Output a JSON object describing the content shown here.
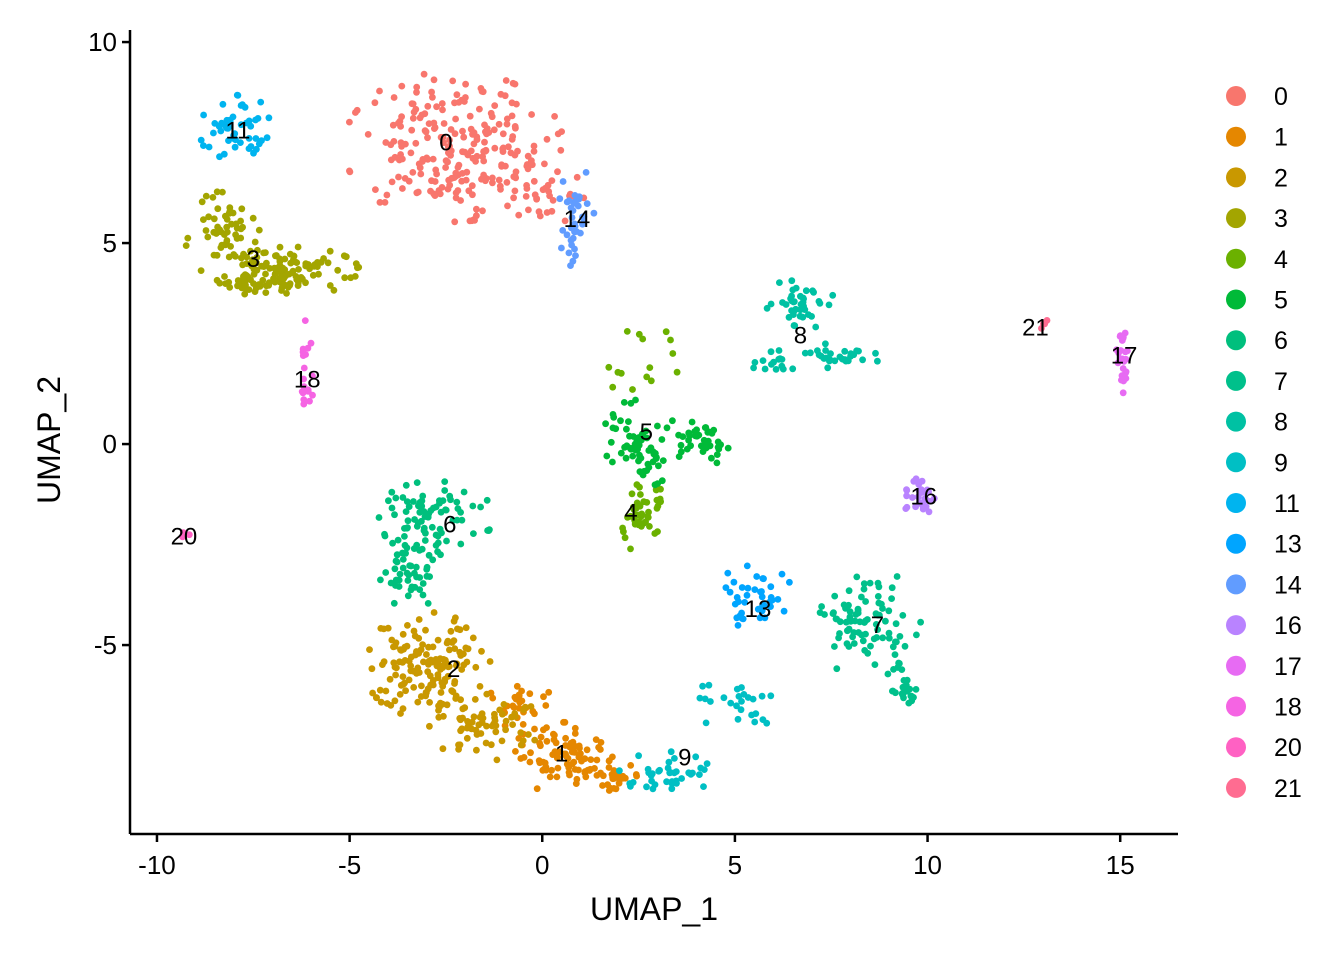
{
  "chart_data": {
    "type": "scatter",
    "title": "",
    "xlabel": "UMAP_1",
    "ylabel": "UMAP_2",
    "xlim": [
      -10.7,
      16.5
    ],
    "ylim": [
      -9.7,
      10.3
    ],
    "xticks": [
      -10,
      -5,
      0,
      5,
      10,
      15
    ],
    "yticks": [
      -5,
      0,
      5,
      10
    ],
    "xtick_labels": [
      "-10",
      "-5",
      "0",
      "5",
      "10",
      "15"
    ],
    "ytick_labels": [
      "-5",
      "0",
      "5",
      "10"
    ],
    "grid": false,
    "legend_position": "right",
    "clusters": [
      {
        "name": "0",
        "color": "#F8766D",
        "label_pos": [
          -2.5,
          7.5
        ],
        "regions": [
          {
            "cx": -2.3,
            "cy": 7.4,
            "rx": 2.6,
            "ry": 1.7,
            "n": 230
          },
          {
            "cx": 0.0,
            "cy": 6.2,
            "rx": 1.0,
            "ry": 0.7,
            "n": 30
          }
        ]
      },
      {
        "name": "1",
        "color": "#E58700",
        "label_pos": [
          0.5,
          -7.7
        ],
        "regions": [
          {
            "cx": 0.5,
            "cy": -7.8,
            "rx": 1.2,
            "ry": 0.8,
            "n": 90
          },
          {
            "cx": 1.9,
            "cy": -8.3,
            "rx": 0.5,
            "ry": 0.4,
            "n": 25
          },
          {
            "cx": -0.6,
            "cy": -6.5,
            "rx": 0.8,
            "ry": 0.6,
            "n": 30
          }
        ]
      },
      {
        "name": "2",
        "color": "#C99800",
        "label_pos": [
          -2.3,
          -5.6
        ],
        "regions": [
          {
            "cx": -3.0,
            "cy": -5.5,
            "rx": 1.5,
            "ry": 1.2,
            "n": 150
          },
          {
            "cx": -1.5,
            "cy": -7.0,
            "rx": 1.3,
            "ry": 0.8,
            "n": 60
          }
        ]
      },
      {
        "name": "3",
        "color": "#A3A500",
        "label_pos": [
          -7.5,
          4.6
        ],
        "regions": [
          {
            "cx": -8.2,
            "cy": 5.2,
            "rx": 1.0,
            "ry": 1.0,
            "n": 60
          },
          {
            "cx": -6.5,
            "cy": 4.3,
            "rx": 1.6,
            "ry": 0.55,
            "n": 100
          },
          {
            "cx": -7.8,
            "cy": 4.0,
            "rx": 0.8,
            "ry": 0.3,
            "n": 30
          }
        ]
      },
      {
        "name": "4",
        "color": "#6BB100",
        "label_pos": [
          2.3,
          -1.7
        ],
        "regions": [
          {
            "cx": 2.6,
            "cy": -1.7,
            "rx": 0.5,
            "ry": 1.0,
            "n": 45
          },
          {
            "cx": 2.3,
            "cy": 2.0,
            "rx": 1.4,
            "ry": 0.9,
            "n": 15
          }
        ]
      },
      {
        "name": "5",
        "color": "#00BA38",
        "label_pos": [
          2.7,
          0.3
        ],
        "regions": [
          {
            "cx": 2.5,
            "cy": 0.0,
            "rx": 1.0,
            "ry": 1.0,
            "n": 70
          },
          {
            "cx": 4.2,
            "cy": 0.1,
            "rx": 0.6,
            "ry": 0.6,
            "n": 40
          }
        ]
      },
      {
        "name": "6",
        "color": "#00BF7D",
        "label_pos": [
          -2.4,
          -2.0
        ],
        "regions": [
          {
            "cx": -2.8,
            "cy": -1.8,
            "rx": 1.4,
            "ry": 0.8,
            "n": 75
          },
          {
            "cx": -3.4,
            "cy": -3.2,
            "rx": 0.8,
            "ry": 0.8,
            "n": 50
          }
        ]
      },
      {
        "name": "7",
        "color": "#00C08B",
        "label_pos": [
          8.7,
          -4.5
        ],
        "regions": [
          {
            "cx": 8.5,
            "cy": -4.5,
            "rx": 1.2,
            "ry": 1.3,
            "n": 90
          },
          {
            "cx": 9.4,
            "cy": -6.2,
            "rx": 0.4,
            "ry": 0.3,
            "n": 20
          }
        ]
      },
      {
        "name": "8",
        "color": "#00C1A3",
        "label_pos": [
          6.7,
          2.7
        ],
        "regions": [
          {
            "cx": 6.7,
            "cy": 3.5,
            "rx": 0.8,
            "ry": 0.6,
            "n": 40
          },
          {
            "cx": 7.8,
            "cy": 2.2,
            "rx": 0.9,
            "ry": 0.3,
            "n": 30
          },
          {
            "cx": 6.0,
            "cy": 2.0,
            "rx": 0.6,
            "ry": 0.4,
            "n": 15
          }
        ]
      },
      {
        "name": "9",
        "color": "#00BFC4",
        "label_pos": [
          3.7,
          -7.8
        ],
        "regions": [
          {
            "cx": 3.2,
            "cy": -8.2,
            "rx": 1.1,
            "ry": 0.5,
            "n": 40
          },
          {
            "cx": 5.0,
            "cy": -6.5,
            "rx": 1.1,
            "ry": 0.6,
            "n": 25
          }
        ]
      },
      {
        "name": "11",
        "color": "#00B4EF",
        "label_pos": [
          -7.9,
          7.8
        ],
        "regions": [
          {
            "cx": -7.9,
            "cy": 7.8,
            "rx": 0.9,
            "ry": 0.8,
            "n": 50
          }
        ]
      },
      {
        "name": "13",
        "color": "#00A5FF",
        "label_pos": [
          5.6,
          -4.1
        ],
        "regions": [
          {
            "cx": 5.5,
            "cy": -3.9,
            "rx": 1.0,
            "ry": 0.8,
            "n": 40
          }
        ]
      },
      {
        "name": "14",
        "color": "#619CFF",
        "label_pos": [
          0.9,
          5.6
        ],
        "regions": [
          {
            "cx": 0.9,
            "cy": 5.5,
            "rx": 0.5,
            "ry": 1.4,
            "n": 40
          }
        ]
      },
      {
        "name": "16",
        "color": "#B983FF",
        "label_pos": [
          9.9,
          -1.3
        ],
        "regions": [
          {
            "cx": 9.8,
            "cy": -1.3,
            "rx": 0.4,
            "ry": 0.5,
            "n": 30
          }
        ]
      },
      {
        "name": "17",
        "color": "#E76BF3",
        "label_pos": [
          15.1,
          2.2
        ],
        "regions": [
          {
            "cx": 15.1,
            "cy": 2.0,
            "rx": 0.2,
            "ry": 0.7,
            "n": 25
          }
        ]
      },
      {
        "name": "18",
        "color": "#F564E3",
        "label_pos": [
          -6.1,
          1.6
        ],
        "regions": [
          {
            "cx": -6.1,
            "cy": 2.0,
            "rx": 0.2,
            "ry": 1.0,
            "n": 20
          }
        ]
      },
      {
        "name": "20",
        "color": "#FF61C3",
        "label_pos": [
          -9.3,
          -2.3
        ],
        "regions": [
          {
            "cx": -9.3,
            "cy": -2.3,
            "rx": 0.15,
            "ry": 0.12,
            "n": 4
          }
        ]
      },
      {
        "name": "21",
        "color": "#FF6C91",
        "label_pos": [
          12.8,
          2.9
        ],
        "regions": [
          {
            "cx": 13.0,
            "cy": 3.0,
            "rx": 0.12,
            "ry": 0.12,
            "n": 4
          }
        ]
      }
    ]
  }
}
